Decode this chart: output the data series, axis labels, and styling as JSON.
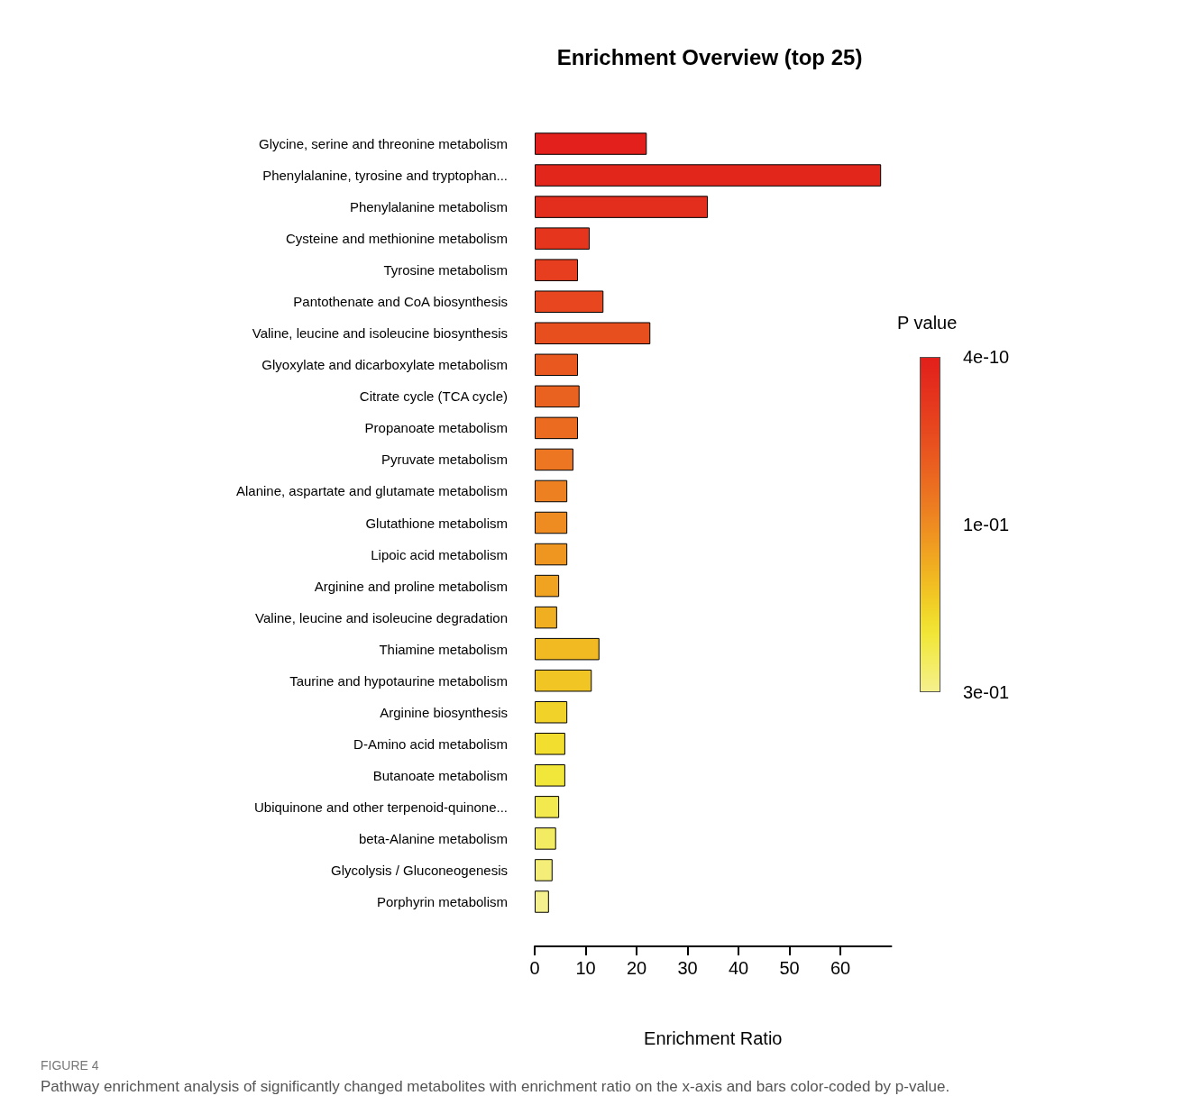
{
  "chart_data": {
    "type": "bar",
    "orientation": "horizontal",
    "title": "Enrichment Overview (top 25)",
    "xlabel": "Enrichment Ratio",
    "clabel": "P value",
    "categories": [
      "Glycine, serine and threonine metabolism",
      "Phenylalanine, tyrosine and tryptophan...",
      "Phenylalanine metabolism",
      "Cysteine and methionine metabolism",
      "Tyrosine metabolism",
      "Pantothenate and CoA biosynthesis",
      "Valine, leucine and isoleucine biosynthesis",
      "Glyoxylate and dicarboxylate metabolism",
      "Citrate cycle (TCA cycle)",
      "Propanoate metabolism",
      "Pyruvate metabolism",
      "Alanine, aspartate and glutamate metabolism",
      "Glutathione metabolism",
      "Lipoic acid metabolism",
      "Arginine and proline metabolism",
      "Valine, leucine and isoleucine degradation",
      "Thiamine metabolism",
      "Taurine and hypotaurine metabolism",
      "Arginine biosynthesis",
      "D-Amino acid metabolism",
      "Butanoate metabolism",
      "Ubiquinone and other terpenoid-quinone...",
      "beta-Alanine metabolism",
      "Glycolysis / Gluconeogenesis",
      "Porphyrin metabolism"
    ],
    "values": [
      22,
      68,
      34,
      10.8,
      8.5,
      13.5,
      22.7,
      8.5,
      8.8,
      8.5,
      7.6,
      6.4,
      6.4,
      6.4,
      4.8,
      4.4,
      12.7,
      11.2,
      6.4,
      6,
      6,
      4.8,
      4.2,
      3.5,
      2.8
    ],
    "colors": [
      "#e3201b",
      "#e3261c",
      "#e42e1d",
      "#e5361d",
      "#e63e1e",
      "#e7461e",
      "#e84f1f",
      "#e9581f",
      "#ea6220",
      "#eb6c20",
      "#ec7621",
      "#ed8021",
      "#ee8b21",
      "#ef9621",
      "#f0a221",
      "#f0ae21",
      "#f1ba22",
      "#f1c624",
      "#f1d228",
      "#f1de2e",
      "#f1e63a",
      "#f2e94e",
      "#f3ec62",
      "#f4ee78",
      "#f5f08e"
    ],
    "xlim": [
      0,
      70
    ],
    "xticks": [
      0,
      10,
      20,
      30,
      40,
      50,
      60
    ],
    "grid": false,
    "annotations": [
      "4e-10",
      "1e-01",
      "3e-01",
      "FIGURE 4",
      "Pathway enrichment analysis of significantly changed metabolites with enrichment ratio on the x-axis and bars color-coded by p-value."
    ]
  }
}
